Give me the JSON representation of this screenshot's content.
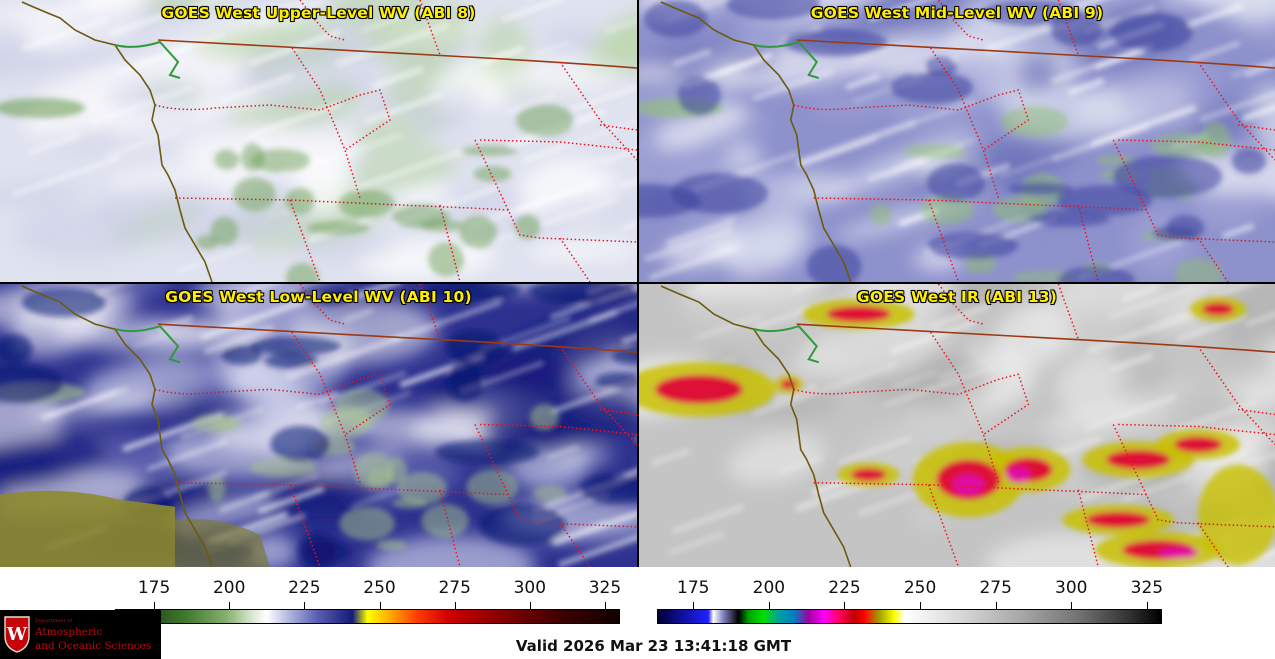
{
  "panels": [
    {
      "title": "GOES West Upper-Level WV (ABI 8)",
      "scheme": "upper"
    },
    {
      "title": "GOES West Mid-Level WV (ABI 9)",
      "scheme": "mid"
    },
    {
      "title": "GOES West Low-Level WV (ABI 10)",
      "scheme": "low"
    },
    {
      "title": "GOES West IR (ABI 13)",
      "scheme": "ir"
    }
  ],
  "colorbars": [
    {
      "ticks": [
        "175",
        "200",
        "225",
        "250",
        "275",
        "300",
        "325"
      ],
      "min": 162,
      "max": 330,
      "palette": "wv"
    },
    {
      "ticks": [
        "175",
        "200",
        "225",
        "250",
        "275",
        "300",
        "325"
      ],
      "min": 163,
      "max": 330,
      "palette": "ir"
    }
  ],
  "logo": {
    "line1": "Department of",
    "line2": "Atmospheric",
    "line3": "and Oceanic Sciences",
    "seal_letter": "W"
  },
  "valid_time": "Valid 2026 Mar 23 13:41:18 GMT",
  "colors": {
    "title_text": "#ffee00",
    "coastline": "#6b5a10",
    "state_border": "#e8141e",
    "national_border": "#9b3a12",
    "logo_text": "#c5050c"
  }
}
